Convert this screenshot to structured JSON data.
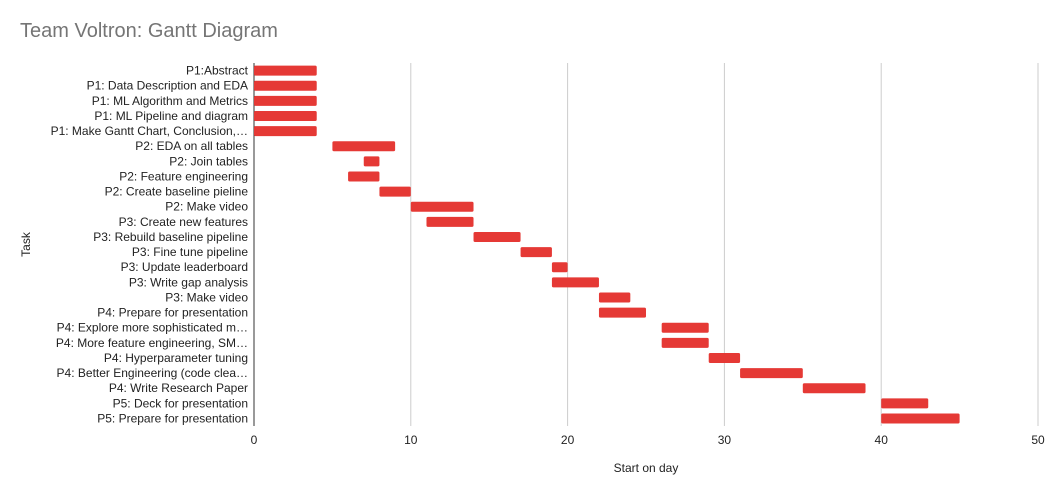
{
  "chart_data": {
    "type": "bar",
    "orientation": "horizontal",
    "title": "Team Voltron: Gantt Diagram",
    "xlabel": "Start on day",
    "ylabel": "Task",
    "xlim": [
      0,
      50
    ],
    "xticks": [
      0,
      10,
      20,
      30,
      40,
      50
    ],
    "grid": "vertical",
    "bar_color": "#e53935",
    "categories": [
      "P1:Abstract",
      "P1: Data Description and EDA",
      "P1: ML Algorithm and Metrics",
      "P1: ML Pipeline and diagram",
      "P1: Make Gantt Chart, Conclusion,…",
      "P2: EDA on all tables",
      "P2: Join tables",
      "P2: Feature engineering",
      "P2: Create baseline pieline",
      "P2: Make video",
      "P3: Create new features",
      "P3: Rebuild baseline pipeline",
      "P3: Fine tune pipeline",
      "P3: Update leaderboard",
      "P3: Write gap analysis",
      "P3: Make video",
      "P4: Prepare for presentation",
      "P4: Explore more sophisticated m…",
      "P4: More feature engineering, SM…",
      "P4: Hyperparameter tuning",
      "P4: Better Engineering (code clea…",
      "P4: Write Research Paper",
      "P5: Deck for presentation",
      "P5: Prepare for presentation"
    ],
    "start": [
      0,
      0,
      0,
      0,
      0,
      5,
      7,
      6,
      8,
      10,
      11,
      14,
      17,
      19,
      19,
      22,
      22,
      26,
      26,
      29,
      31,
      35,
      40,
      40
    ],
    "end": [
      4,
      4,
      4,
      4,
      4,
      9,
      8,
      8,
      10,
      14,
      14,
      17,
      19,
      20,
      22,
      24,
      25,
      29,
      29,
      31,
      35,
      39,
      43,
      45
    ]
  }
}
